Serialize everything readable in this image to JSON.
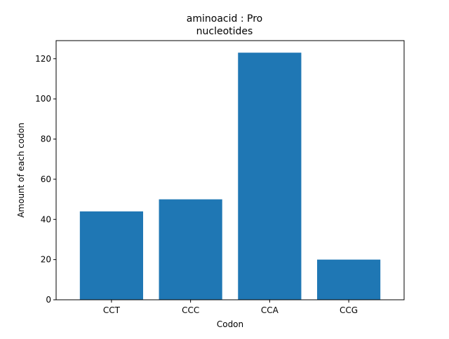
{
  "chart_data": {
    "type": "bar",
    "title_line1": "aminoacid : Pro",
    "title_line2": "nucleotides",
    "xlabel": "Codon",
    "ylabel": "Amount of each codon",
    "categories": [
      "CCT",
      "CCC",
      "CCA",
      "CCG"
    ],
    "values": [
      44,
      50,
      123,
      20
    ],
    "ylim": [
      0,
      129
    ],
    "yticks": [
      0,
      20,
      40,
      60,
      80,
      100,
      120
    ],
    "ytick_labels": [
      "0",
      "20",
      "40",
      "60",
      "80",
      "100",
      "120"
    ],
    "grid": false,
    "legend": "none",
    "bar_color": "#1f77b4"
  }
}
